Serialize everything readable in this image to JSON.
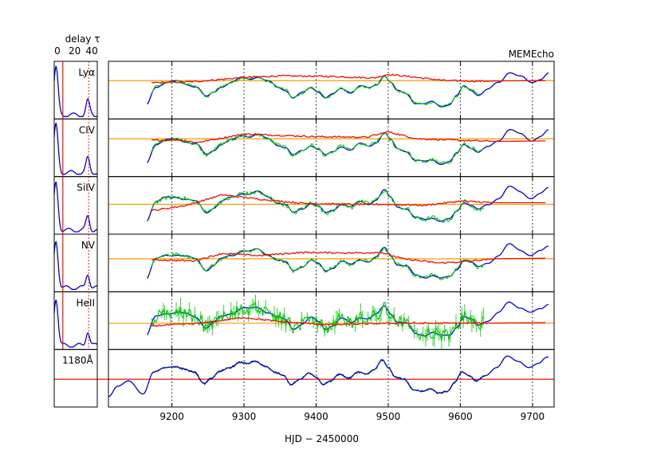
{
  "header": {
    "delay_label": "delay τ",
    "delay_ticks": [
      "0",
      "20",
      "40"
    ],
    "method": "MEMEcho"
  },
  "colors": {
    "driver": "#0000dd",
    "data": "#00cc00",
    "model": "#ee1100",
    "reference": "#ff9900",
    "delay_marker": "#ee1100"
  },
  "chart_data": {
    "type": "line",
    "xlabel": "HJD − 2450000",
    "x_ticks": [
      9200,
      9300,
      9400,
      9500,
      9600,
      9700
    ],
    "x_dotted_gridlines": [
      9200,
      9300,
      9400,
      9500,
      9600,
      9700
    ],
    "xlim": [
      9112,
      9730
    ],
    "delay_ticks": [
      0,
      20,
      40
    ],
    "delay_range": [
      0,
      50
    ],
    "panels": [
      {
        "name": "Lyα",
        "ref_level": 0.68,
        "data_range": [
          9172,
          9628
        ],
        "err": 0.02,
        "model": [
          [
            9172,
            0.64
          ],
          [
            9230,
            0.66
          ],
          [
            9300,
            0.74
          ],
          [
            9350,
            0.77
          ],
          [
            9420,
            0.76
          ],
          [
            9480,
            0.73
          ],
          [
            9500,
            0.8
          ],
          [
            9580,
            0.68
          ],
          [
            9620,
            0.67
          ],
          [
            9700,
            0.68
          ],
          [
            9718,
            0.68
          ]
        ],
        "delay_peak": 0,
        "delay_secondary": 40
      },
      {
        "name": "CIV",
        "ref_level": 0.67,
        "data_range": [
          9172,
          9632
        ],
        "err": 0.03,
        "model": [
          [
            9172,
            0.64
          ],
          [
            9210,
            0.65
          ],
          [
            9235,
            0.6
          ],
          [
            9260,
            0.66
          ],
          [
            9300,
            0.76
          ],
          [
            9340,
            0.74
          ],
          [
            9400,
            0.71
          ],
          [
            9470,
            0.7
          ],
          [
            9500,
            0.8
          ],
          [
            9540,
            0.67
          ],
          [
            9600,
            0.64
          ],
          [
            9650,
            0.62
          ],
          [
            9718,
            0.63
          ]
        ],
        "delay_peak": 0,
        "delay_secondary": 40
      },
      {
        "name": "SiIV",
        "ref_level": 0.52,
        "data_range": [
          9172,
          9632
        ],
        "err": 0.04,
        "model": [
          [
            9172,
            0.4
          ],
          [
            9220,
            0.5
          ],
          [
            9270,
            0.7
          ],
          [
            9320,
            0.62
          ],
          [
            9380,
            0.54
          ],
          [
            9440,
            0.52
          ],
          [
            9500,
            0.52
          ],
          [
            9550,
            0.5
          ],
          [
            9600,
            0.58
          ],
          [
            9650,
            0.55
          ],
          [
            9718,
            0.55
          ]
        ],
        "delay_peak": 0,
        "delay_secondary": 40
      },
      {
        "name": "NV",
        "ref_level": 0.58,
        "data_range": [
          9172,
          9632
        ],
        "err": 0.03,
        "model": [
          [
            9172,
            0.56
          ],
          [
            9230,
            0.54
          ],
          [
            9270,
            0.68
          ],
          [
            9320,
            0.64
          ],
          [
            9380,
            0.7
          ],
          [
            9450,
            0.69
          ],
          [
            9490,
            0.7
          ],
          [
            9520,
            0.58
          ],
          [
            9570,
            0.5
          ],
          [
            9600,
            0.52
          ],
          [
            9650,
            0.58
          ],
          [
            9718,
            0.59
          ]
        ],
        "delay_peak": 0,
        "delay_secondary": 40
      },
      {
        "name": "HeII",
        "ref_level": 0.45,
        "data_range": [
          9172,
          9632
        ],
        "err": 0.12,
        "model": [
          [
            9172,
            0.4
          ],
          [
            9240,
            0.45
          ],
          [
            9300,
            0.56
          ],
          [
            9350,
            0.48
          ],
          [
            9420,
            0.42
          ],
          [
            9500,
            0.45
          ],
          [
            9600,
            0.45
          ],
          [
            9718,
            0.46
          ]
        ],
        "delay_peak": 0,
        "delay_secondary": 40
      },
      {
        "name": "1180Å",
        "ref_level": 0.48,
        "driver_only": true
      }
    ]
  }
}
